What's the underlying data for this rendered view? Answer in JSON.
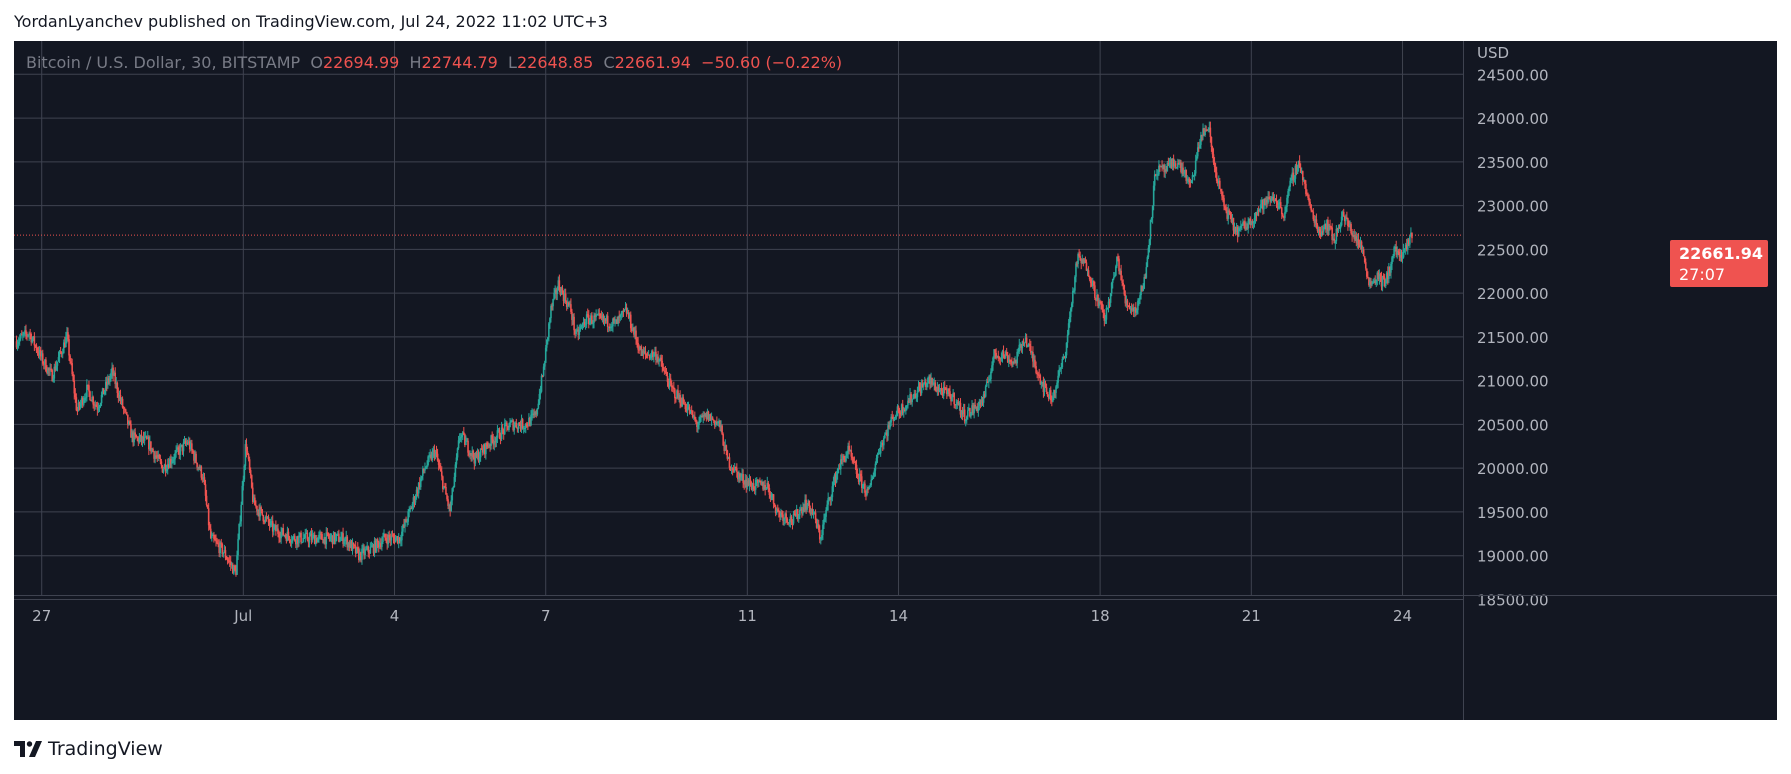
{
  "header": {
    "publish_text": "YordanLyanchev published on TradingView.com, Jul 24, 2022 11:02 UTC+3"
  },
  "legend": {
    "symbol": "Bitcoin / U.S. Dollar, 30, BITSTAMP",
    "o_label": "O",
    "o_value": "22694.99",
    "h_label": "H",
    "h_value": "22744.79",
    "l_label": "L",
    "l_value": "22648.85",
    "c_label": "C",
    "c_value": "22661.94",
    "change": "−50.60 (−0.22%)"
  },
  "price_tag": {
    "price": "22661.94",
    "countdown": "27:07"
  },
  "footer": {
    "brand": "TradingView",
    "logo_icon": "tradingview-logo-icon"
  },
  "colors": {
    "background": "#131722",
    "grid": "#3f4350",
    "up": "#26a69a",
    "down": "#ef5350",
    "axis_text": "#b2b5be",
    "last_price": "#ef5350"
  },
  "chart_data": {
    "type": "candlestick",
    "title": "Bitcoin / U.S. Dollar, 30, BITSTAMP",
    "currency_label": "USD",
    "last_price": 22661.94,
    "y_ticks": [
      18500,
      19000,
      19500,
      20000,
      20500,
      21000,
      21500,
      22000,
      22500,
      23000,
      23500,
      24000,
      24500
    ],
    "y_tick_labels": [
      "18500.00",
      "19000.00",
      "19500.00",
      "20000.00",
      "20500.00",
      "21000.00",
      "21500.00",
      "22000.00",
      "22500.00",
      "23000.00",
      "23500.00",
      "24000.00",
      "24500.00"
    ],
    "x_ticks": [
      {
        "day": 27,
        "label": "27"
      },
      {
        "day": 31,
        "label": "Jul"
      },
      {
        "day": 34,
        "label": "4"
      },
      {
        "day": 37,
        "label": "7"
      },
      {
        "day": 41,
        "label": "11"
      },
      {
        "day": 44,
        "label": "14"
      },
      {
        "day": 48,
        "label": "18"
      },
      {
        "day": 51,
        "label": "21"
      },
      {
        "day": 54,
        "label": "24"
      }
    ],
    "x_range_days": [
      26.45,
      55.2
    ],
    "y_range": [
      18050,
      24500
    ],
    "series_path": [
      [
        26.5,
        21450
      ],
      [
        26.75,
        21550
      ],
      [
        27.0,
        21250
      ],
      [
        27.2,
        21050
      ],
      [
        27.5,
        21500
      ],
      [
        27.7,
        20650
      ],
      [
        27.9,
        20900
      ],
      [
        28.1,
        20700
      ],
      [
        28.4,
        21100
      ],
      [
        28.55,
        20800
      ],
      [
        28.8,
        20350
      ],
      [
        29.1,
        20300
      ],
      [
        29.4,
        20000
      ],
      [
        29.9,
        20300
      ],
      [
        30.2,
        19900
      ],
      [
        30.35,
        19200
      ],
      [
        30.6,
        19050
      ],
      [
        30.85,
        18800
      ],
      [
        31.05,
        20300
      ],
      [
        31.2,
        19600
      ],
      [
        31.6,
        19300
      ],
      [
        32.0,
        19200
      ],
      [
        32.5,
        19200
      ],
      [
        33.0,
        19200
      ],
      [
        33.3,
        19000
      ],
      [
        33.6,
        19100
      ],
      [
        33.8,
        19200
      ],
      [
        34.1,
        19200
      ],
      [
        34.3,
        19500
      ],
      [
        34.6,
        20000
      ],
      [
        34.8,
        20200
      ],
      [
        35.1,
        19500
      ],
      [
        35.3,
        20400
      ],
      [
        35.6,
        20100
      ],
      [
        35.9,
        20300
      ],
      [
        36.1,
        20400
      ],
      [
        36.3,
        20500
      ],
      [
        36.6,
        20500
      ],
      [
        36.8,
        20600
      ],
      [
        36.95,
        21100
      ],
      [
        37.1,
        21800
      ],
      [
        37.25,
        22100
      ],
      [
        37.5,
        21800
      ],
      [
        37.6,
        21500
      ],
      [
        37.8,
        21700
      ],
      [
        38.05,
        21700
      ],
      [
        38.4,
        21650
      ],
      [
        38.6,
        21800
      ],
      [
        38.9,
        21300
      ],
      [
        39.2,
        21300
      ],
      [
        39.5,
        20900
      ],
      [
        39.8,
        20700
      ],
      [
        40.0,
        20500
      ],
      [
        40.2,
        20600
      ],
      [
        40.45,
        20500
      ],
      [
        40.6,
        20100
      ],
      [
        40.85,
        19900
      ],
      [
        41.1,
        19800
      ],
      [
        41.4,
        19800
      ],
      [
        41.6,
        19500
      ],
      [
        41.9,
        19400
      ],
      [
        42.15,
        19600
      ],
      [
        42.3,
        19500
      ],
      [
        42.45,
        19200
      ],
      [
        42.6,
        19600
      ],
      [
        42.8,
        20000
      ],
      [
        43.0,
        20200
      ],
      [
        43.2,
        19900
      ],
      [
        43.4,
        19700
      ],
      [
        43.6,
        20200
      ],
      [
        43.9,
        20600
      ],
      [
        44.1,
        20700
      ],
      [
        44.4,
        20900
      ],
      [
        44.6,
        21000
      ],
      [
        44.8,
        20900
      ],
      [
        45.1,
        20800
      ],
      [
        45.3,
        20600
      ],
      [
        45.55,
        20700
      ],
      [
        45.7,
        20800
      ],
      [
        45.9,
        21300
      ],
      [
        46.1,
        21300
      ],
      [
        46.3,
        21200
      ],
      [
        46.5,
        21500
      ],
      [
        46.7,
        21200
      ],
      [
        46.9,
        20900
      ],
      [
        47.05,
        20800
      ],
      [
        47.3,
        21300
      ],
      [
        47.55,
        22400
      ],
      [
        47.75,
        22300
      ],
      [
        47.9,
        22000
      ],
      [
        48.1,
        21700
      ],
      [
        48.35,
        22400
      ],
      [
        48.5,
        21900
      ],
      [
        48.7,
        21800
      ],
      [
        48.9,
        22200
      ],
      [
        49.1,
        23400
      ],
      [
        49.3,
        23400
      ],
      [
        49.5,
        23500
      ],
      [
        49.65,
        23400
      ],
      [
        49.8,
        23200
      ],
      [
        50.0,
        23800
      ],
      [
        50.15,
        23900
      ],
      [
        50.25,
        23500
      ],
      [
        50.45,
        23000
      ],
      [
        50.7,
        22700
      ],
      [
        50.95,
        22800
      ],
      [
        51.2,
        23000
      ],
      [
        51.45,
        23100
      ],
      [
        51.65,
        22900
      ],
      [
        51.8,
        23300
      ],
      [
        51.95,
        23500
      ],
      [
        52.15,
        23000
      ],
      [
        52.35,
        22700
      ],
      [
        52.5,
        22800
      ],
      [
        52.65,
        22600
      ],
      [
        52.8,
        22900
      ],
      [
        53.0,
        22700
      ],
      [
        53.2,
        22500
      ],
      [
        53.35,
        22100
      ],
      [
        53.5,
        22200
      ],
      [
        53.65,
        22100
      ],
      [
        53.85,
        22500
      ],
      [
        54.0,
        22400
      ],
      [
        54.2,
        22700
      ]
    ]
  }
}
